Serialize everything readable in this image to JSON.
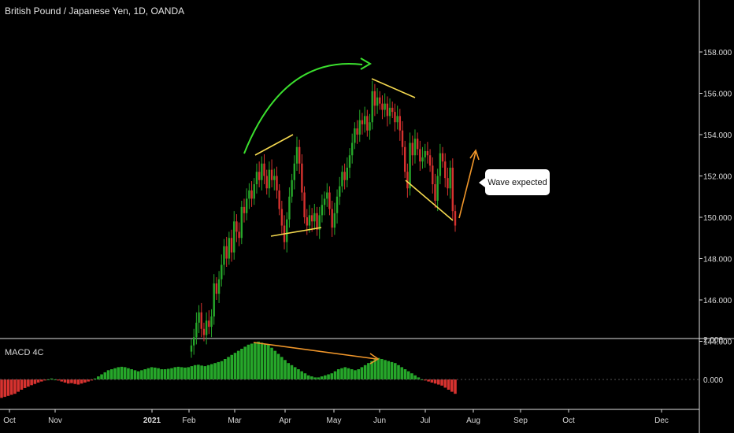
{
  "title": "British Pound / Japanese Yen, 1D, OANDA",
  "macd_label": "MACD 4C",
  "callout_text": "Wave expected",
  "colors": {
    "up": "#26a72a",
    "down": "#d6322f",
    "annot_yellow": "#f5d94f",
    "annot_green": "#3be02e",
    "annot_orange": "#f0962a",
    "grid": "#e0e0e0"
  },
  "chart_data": [
    {
      "type": "candlestick",
      "title": "British Pound / Japanese Yen, 1D, OANDA",
      "y_axis": {
        "ticks": [
          144.0,
          146.0,
          148.0,
          150.0,
          152.0,
          154.0,
          156.0,
          158.0
        ],
        "tick_labels": [
          "144.000",
          "146.000",
          "148.000",
          "150.000",
          "152.000",
          "154.000",
          "156.000",
          "158.000"
        ],
        "ylim": [
          143.8,
          159.3
        ]
      },
      "x_axis": {
        "tick_labels": [
          "Oct",
          "Nov",
          "2021",
          "Feb",
          "Mar",
          "Apr",
          "May",
          "Jun",
          "Jul",
          "Aug",
          "Sep",
          "Oct",
          "Dec"
        ],
        "bold": [
          "2021"
        ]
      },
      "visible_closes": [
        143.8,
        144.2,
        144.9,
        145.4,
        144.6,
        144.3,
        145.0,
        144.7,
        145.2,
        146.8,
        146.3,
        147.0,
        147.7,
        148.6,
        148.0,
        149.0,
        148.3,
        149.8,
        149.3,
        149.0,
        150.5,
        150.2,
        150.9,
        151.3,
        150.9,
        151.6,
        152.2,
        151.8,
        152.6,
        152.0,
        151.4,
        152.3,
        151.8,
        152.0,
        151.3,
        150.4,
        149.6,
        148.8,
        149.9,
        151.0,
        151.8,
        152.6,
        153.4,
        152.6,
        151.2,
        150.0,
        149.6,
        150.1,
        149.8,
        150.2,
        149.4,
        150.1,
        150.6,
        150.9,
        151.2,
        150.4,
        149.5,
        150.2,
        151.0,
        151.5,
        152.2,
        151.8,
        152.4,
        153.0,
        153.6,
        154.3,
        154.0,
        154.7,
        154.5,
        154.9,
        154.2,
        154.6,
        156.1,
        155.4,
        155.8,
        155.5,
        155.2,
        155.5,
        154.9,
        155.3,
        155.1,
        154.6,
        154.9,
        154.2,
        153.4,
        152.2,
        151.4,
        153.6,
        153.0,
        153.8,
        153.3,
        152.7,
        152.9,
        153.2,
        153.0,
        152.5,
        151.6,
        150.8,
        152.0,
        153.1,
        152.7,
        151.9,
        151.4,
        152.4,
        150.3,
        149.6
      ],
      "annotations": [
        {
          "type": "curved-arrow",
          "color": "green"
        },
        {
          "type": "triangle",
          "color": "yellow"
        },
        {
          "type": "wedge",
          "color": "yellow"
        },
        {
          "type": "arrow",
          "color": "orange"
        },
        {
          "type": "callout",
          "text": "Wave expected"
        }
      ]
    },
    {
      "type": "bar",
      "title": "MACD 4C",
      "y_axis": {
        "ticks": [
          2.0,
          0.0
        ],
        "tick_labels": [
          "2.000",
          "0.000"
        ]
      },
      "values": [
        -0.9,
        -0.85,
        -0.8,
        -0.75,
        -0.7,
        -0.6,
        -0.5,
        -0.42,
        -0.35,
        -0.28,
        -0.22,
        -0.15,
        -0.1,
        -0.05,
        0.0,
        0.05,
        0.0,
        -0.05,
        -0.1,
        -0.15,
        -0.2,
        -0.18,
        -0.22,
        -0.25,
        -0.2,
        -0.15,
        -0.1,
        -0.05,
        0.05,
        0.15,
        0.25,
        0.35,
        0.45,
        0.5,
        0.55,
        0.6,
        0.62,
        0.6,
        0.55,
        0.5,
        0.45,
        0.4,
        0.45,
        0.5,
        0.55,
        0.6,
        0.58,
        0.55,
        0.5,
        0.5,
        0.52,
        0.55,
        0.6,
        0.62,
        0.6,
        0.58,
        0.6,
        0.65,
        0.7,
        0.72,
        0.68,
        0.65,
        0.7,
        0.75,
        0.8,
        0.85,
        0.9,
        1.0,
        1.1,
        1.2,
        1.3,
        1.4,
        1.5,
        1.6,
        1.7,
        1.75,
        1.8,
        1.85,
        1.8,
        1.75,
        1.7,
        1.55,
        1.4,
        1.25,
        1.1,
        0.95,
        0.8,
        0.7,
        0.6,
        0.5,
        0.4,
        0.3,
        0.2,
        0.15,
        0.1,
        0.1,
        0.15,
        0.2,
        0.25,
        0.3,
        0.4,
        0.5,
        0.55,
        0.6,
        0.55,
        0.5,
        0.45,
        0.5,
        0.6,
        0.7,
        0.8,
        0.9,
        1.0,
        1.05,
        1.0,
        0.95,
        0.9,
        0.85,
        0.8,
        0.7,
        0.6,
        0.5,
        0.4,
        0.3,
        0.2,
        0.1,
        0.0,
        -0.05,
        -0.1,
        -0.15,
        -0.2,
        -0.25,
        -0.3,
        -0.4,
        -0.5,
        -0.6,
        -0.7
      ]
    }
  ]
}
